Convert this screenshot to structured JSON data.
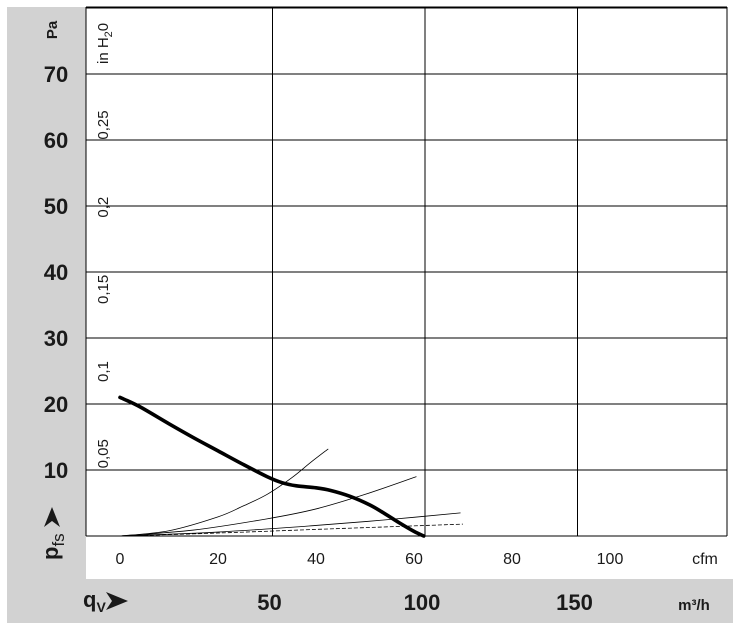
{
  "chart_data": {
    "type": "line",
    "y_axis_pa": {
      "unit": "Pa",
      "ticks": [
        10,
        20,
        30,
        40,
        50,
        60,
        70
      ],
      "tick_labels": [
        "10",
        "20",
        "30",
        "40",
        "50",
        "60",
        "70"
      ],
      "range": [
        0,
        80
      ],
      "label": "p",
      "label_sub": "fs"
    },
    "y_axis_inh2o": {
      "unit": "in H",
      "unit_sub": "2",
      "unit_end": "0",
      "ticks": [
        0.05,
        0.1,
        0.15,
        0.2,
        0.25
      ],
      "tick_labels": [
        "0,05",
        "0,1",
        "0,15",
        "0,2",
        "0,25"
      ]
    },
    "x_axis_cfm": {
      "unit": "cfm",
      "ticks": [
        0,
        20,
        40,
        60,
        80,
        100
      ],
      "tick_labels": [
        "0",
        "20",
        "40",
        "60",
        "80",
        "100"
      ]
    },
    "x_axis_m3h": {
      "unit": "m³/h",
      "label": "q",
      "label_sub": "V",
      "ticks": [
        50,
        100,
        150
      ],
      "tick_labels": [
        "50",
        "100",
        "150"
      ]
    },
    "grid_m3h": [
      0,
      50,
      100,
      150,
      200
    ],
    "grid_pa": [
      0,
      10,
      20,
      30,
      40,
      50,
      60,
      70,
      80
    ],
    "series": [
      {
        "style": "bold",
        "x_cfm": [
          0,
          4,
          10,
          15,
          20,
          25,
          30,
          33,
          36,
          40,
          43,
          47,
          51,
          54,
          57,
          60,
          62
        ],
        "y_pa": [
          21,
          19.6,
          17,
          14.9,
          12.9,
          10.9,
          9.0,
          8.1,
          7.6,
          7.3,
          6.9,
          6.0,
          4.7,
          3.4,
          2.0,
          0.7,
          0
        ]
      },
      {
        "style": "thin-solid",
        "x_cfm": [
          0,
          10,
          20,
          25,
          30,
          35,
          39,
          42.5
        ],
        "y_pa": [
          0,
          0.8,
          2.9,
          4.5,
          6.3,
          8.8,
          11.2,
          13.2
        ]
      },
      {
        "style": "thin-solid",
        "x_cfm": [
          0,
          15,
          30,
          40,
          50,
          60.5
        ],
        "y_pa": [
          0,
          0.9,
          2.6,
          4.1,
          6.3,
          9.0
        ]
      },
      {
        "style": "thin-solid",
        "x_cfm": [
          0,
          20,
          40,
          55,
          69.5
        ],
        "y_pa": [
          0,
          0.6,
          1.6,
          2.5,
          3.5
        ]
      },
      {
        "style": "thin-dashed",
        "x_cfm": [
          0,
          20,
          40,
          55,
          70
        ],
        "y_pa": [
          0,
          0.45,
          1.0,
          1.4,
          1.8
        ]
      }
    ]
  }
}
